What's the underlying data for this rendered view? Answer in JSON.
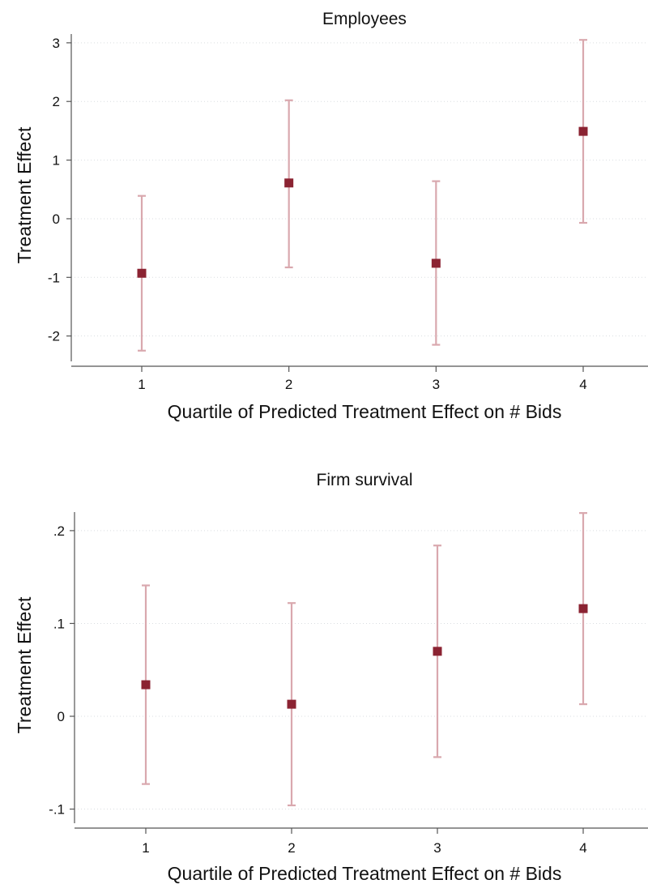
{
  "colors": {
    "marker": "#8b2332",
    "errorbar": "#d9a8ae"
  },
  "chart_data": [
    {
      "type": "scatter",
      "title": "Employees",
      "xlabel": "Quartile of Predicted Treatment Effect on # Bids",
      "ylabel": "Treatment Effect",
      "x": [
        1,
        2,
        3,
        4
      ],
      "xticks": [
        "1",
        "2",
        "3",
        "4"
      ],
      "yticks": [
        -2,
        -1,
        0,
        1,
        2,
        3
      ],
      "ytick_labels": [
        "-2",
        "-1",
        "0",
        "1",
        "2",
        "3"
      ],
      "ylim": [
        -2.35,
        3.15
      ],
      "xlim": [
        0.5,
        4.5
      ],
      "grid": true,
      "series": [
        {
          "estimate": [
            -0.93,
            0.61,
            -0.76,
            1.49
          ],
          "ci_low": [
            -2.25,
            -0.83,
            -2.15,
            -0.07
          ],
          "ci_high": [
            0.39,
            2.02,
            0.64,
            3.05
          ]
        }
      ]
    },
    {
      "type": "scatter",
      "title": "Firm survival",
      "xlabel": "Quartile of Predicted Treatment Effect on # Bids",
      "ylabel": "Treatment Effect",
      "x": [
        1,
        2,
        3,
        4
      ],
      "xticks": [
        "1",
        "2",
        "3",
        "4"
      ],
      "yticks": [
        -0.1,
        0,
        0.1,
        0.2
      ],
      "ytick_labels": [
        "-.1",
        "0",
        ".1",
        ".2"
      ],
      "ylim": [
        -0.11,
        0.22
      ],
      "xlim": [
        0.5,
        4.5
      ],
      "grid": true,
      "series": [
        {
          "estimate": [
            0.034,
            0.013,
            0.07,
            0.116
          ],
          "ci_low": [
            -0.073,
            -0.096,
            -0.044,
            0.013
          ],
          "ci_high": [
            0.141,
            0.122,
            0.184,
            0.219
          ]
        }
      ]
    }
  ]
}
